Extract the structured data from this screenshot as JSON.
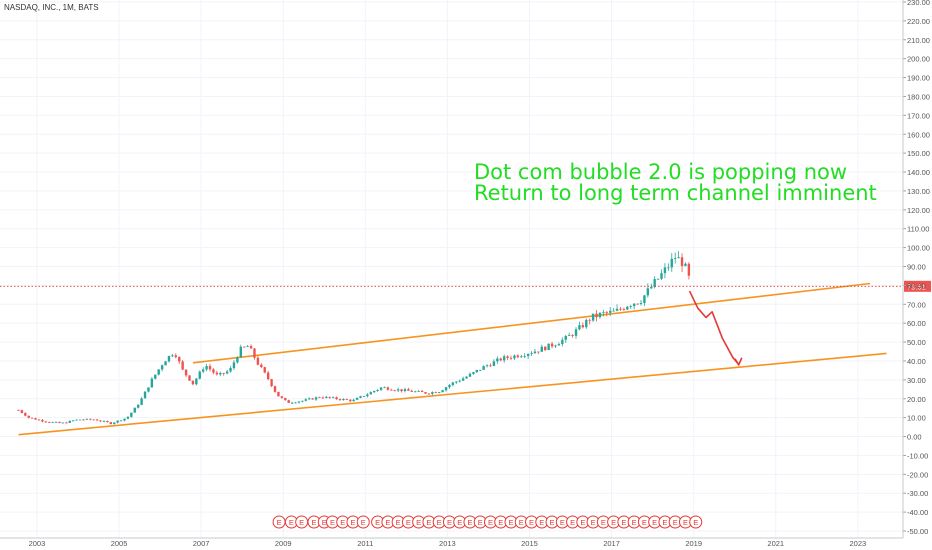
{
  "symbol_title": "NASDAQ, INC., 1M, BATS",
  "annotation": {
    "line1": "Dot com bubble 2.0 is popping now",
    "line2": "Return to long term channel imminent"
  },
  "colors": {
    "up": "#26a69a",
    "down": "#ef5350",
    "channel": "#f7931e",
    "arrow": "#e53935",
    "annotation": "#22dd22",
    "price_line": "#e53935",
    "price_tag": "#ef5350"
  },
  "chart_data": {
    "type": "candlestick",
    "x_range": [
      2002.1,
      2024.1
    ],
    "ylim": [
      -50,
      230
    ],
    "y_ticks": [
      "-50.00",
      "-40.00",
      "-30.00",
      "-20.00",
      "-10.00",
      "0.00",
      "10.00",
      "20.00",
      "30.00",
      "40.00",
      "50.00",
      "60.00",
      "70.00",
      "80.00",
      "90.00",
      "100.00",
      "110.00",
      "120.00",
      "130.00",
      "140.00",
      "150.00",
      "160.00",
      "170.00",
      "180.00",
      "190.00",
      "200.00",
      "210.00",
      "220.00",
      "230.00"
    ],
    "x_ticks": [
      "2003",
      "2005",
      "2007",
      "2009",
      "2011",
      "2013",
      "2015",
      "2017",
      "2019",
      "2021",
      "2023"
    ],
    "current_price": "79.51",
    "series_anchors": [
      [
        2002.55,
        14
      ],
      [
        2002.8,
        10
      ],
      [
        2003.2,
        8
      ],
      [
        2003.6,
        7
      ],
      [
        2004.0,
        9
      ],
      [
        2004.4,
        9
      ],
      [
        2004.8,
        7
      ],
      [
        2005.2,
        10
      ],
      [
        2005.5,
        18
      ],
      [
        2005.8,
        30
      ],
      [
        2006.1,
        40
      ],
      [
        2006.35,
        45
      ],
      [
        2006.55,
        35
      ],
      [
        2006.8,
        28
      ],
      [
        2007.1,
        38
      ],
      [
        2007.4,
        32
      ],
      [
        2007.7,
        35
      ],
      [
        2007.95,
        46
      ],
      [
        2008.15,
        48
      ],
      [
        2008.4,
        38
      ],
      [
        2008.65,
        30
      ],
      [
        2008.85,
        22
      ],
      [
        2009.1,
        18
      ],
      [
        2009.5,
        19
      ],
      [
        2009.9,
        21
      ],
      [
        2010.3,
        20
      ],
      [
        2010.7,
        19
      ],
      [
        2011.1,
        23
      ],
      [
        2011.4,
        26
      ],
      [
        2011.7,
        25
      ],
      [
        2012.1,
        24
      ],
      [
        2012.5,
        23
      ],
      [
        2012.8,
        24
      ],
      [
        2013.1,
        28
      ],
      [
        2013.5,
        32
      ],
      [
        2013.9,
        37
      ],
      [
        2014.3,
        41
      ],
      [
        2014.7,
        43
      ],
      [
        2015.1,
        45
      ],
      [
        2015.5,
        48
      ],
      [
        2015.9,
        52
      ],
      [
        2016.2,
        57
      ],
      [
        2016.5,
        63
      ],
      [
        2016.8,
        65
      ],
      [
        2017.1,
        66
      ],
      [
        2017.4,
        70
      ],
      [
        2017.7,
        72
      ],
      [
        2018.0,
        80
      ],
      [
        2018.3,
        88
      ],
      [
        2018.55,
        95
      ],
      [
        2018.75,
        92
      ],
      [
        2018.95,
        79.5
      ]
    ],
    "channel_upper": [
      [
        2006.8,
        39
      ],
      [
        2023.3,
        81
      ]
    ],
    "channel_lower": [
      [
        2002.55,
        1
      ],
      [
        2023.7,
        44
      ]
    ],
    "projection_arrow": [
      [
        2018.9,
        77
      ],
      [
        2019.1,
        68
      ],
      [
        2019.3,
        63
      ],
      [
        2019.45,
        66
      ],
      [
        2019.7,
        52
      ],
      [
        2019.95,
        42
      ],
      [
        2020.1,
        38
      ]
    ],
    "event_markers": {
      "label": "E",
      "x": [
        2008.9,
        2009.2,
        2009.45,
        2009.75,
        2010.0,
        2010.2,
        2010.45,
        2010.7,
        2010.95,
        2011.3,
        2011.55,
        2011.8,
        2012.05,
        2012.3,
        2012.55,
        2012.8,
        2013.05,
        2013.3,
        2013.55,
        2013.8,
        2014.05,
        2014.3,
        2014.55,
        2014.8,
        2015.05,
        2015.3,
        2015.55,
        2015.8,
        2016.05,
        2016.3,
        2016.55,
        2016.8,
        2017.05,
        2017.3,
        2017.55,
        2017.8,
        2018.05,
        2018.3,
        2018.55,
        2018.8,
        2019.05
      ]
    }
  }
}
